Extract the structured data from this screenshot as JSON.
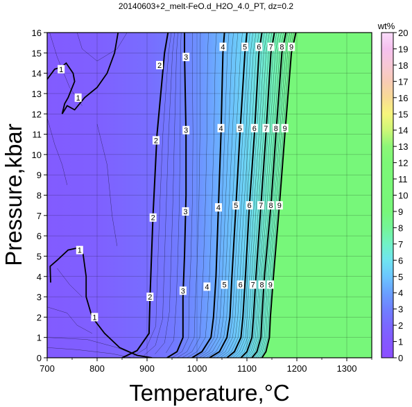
{
  "chart_data": {
    "type": "heatmap",
    "title": "20140603+2_melt-FeO.d_H2O_4.0_PT, dz=0.2",
    "xlabel": "Temperature,°C",
    "ylabel": "Pressure,kbar",
    "xlim": [
      700,
      1350
    ],
    "ylim": [
      0,
      16
    ],
    "x_ticks": [
      700,
      800,
      900,
      1000,
      1100,
      1200,
      1300
    ],
    "y_ticks": [
      0,
      1,
      2,
      3,
      4,
      5,
      6,
      7,
      8,
      9,
      10,
      11,
      12,
      13,
      14,
      15,
      16
    ],
    "grid": true,
    "colorbar": {
      "label": "wt%",
      "range": [
        0,
        20
      ],
      "ticks": [
        0,
        1,
        2,
        3,
        4,
        5,
        6,
        7,
        8,
        9,
        10,
        11,
        12,
        13,
        14,
        15,
        16,
        17,
        18,
        19,
        20
      ],
      "stops": [
        {
          "value": 0,
          "color": "#8c4fff"
        },
        {
          "value": 1,
          "color": "#8458ff"
        },
        {
          "value": 2,
          "color": "#7a68ff"
        },
        {
          "value": 3,
          "color": "#6f80ff"
        },
        {
          "value": 4,
          "color": "#6aa0ff"
        },
        {
          "value": 5,
          "color": "#6cc6ff"
        },
        {
          "value": 6,
          "color": "#6fe4f0"
        },
        {
          "value": 7,
          "color": "#71f2c6"
        },
        {
          "value": 8,
          "color": "#74f597"
        },
        {
          "value": 9,
          "color": "#77f77a"
        },
        {
          "value": 12,
          "color": "#7cf877"
        },
        {
          "value": 13,
          "color": "#8cf777"
        },
        {
          "value": 14,
          "color": "#cdf777"
        },
        {
          "value": 15,
          "color": "#f7f57c"
        },
        {
          "value": 16,
          "color": "#f8da95"
        },
        {
          "value": 17,
          "color": "#f8cbb5"
        },
        {
          "value": 18,
          "color": "#f7c8d6"
        },
        {
          "value": 19,
          "color": "#f5c0ee"
        },
        {
          "value": 20,
          "color": "#fadcfa"
        }
      ]
    },
    "contours": [
      {
        "level": "3",
        "points": [
          [
            975,
            16
          ],
          [
            975,
            15
          ],
          [
            978,
            11
          ],
          [
            978,
            8
          ],
          [
            975,
            5
          ],
          [
            972,
            3
          ],
          [
            972,
            1
          ],
          [
            960,
            0.3
          ],
          [
            940,
            0
          ]
        ]
      },
      {
        "level": "4",
        "points": [
          [
            1055,
            16
          ],
          [
            1052,
            15
          ],
          [
            1048,
            11
          ],
          [
            1043,
            7.5
          ],
          [
            1038,
            4
          ],
          [
            1033,
            2
          ],
          [
            1028,
            1
          ],
          [
            1010,
            0.3
          ],
          [
            990,
            0
          ]
        ]
      },
      {
        "level": "5",
        "points": [
          [
            1100,
            16
          ],
          [
            1096,
            15
          ],
          [
            1086,
            11
          ],
          [
            1078,
            7.5
          ],
          [
            1070,
            4
          ],
          [
            1066,
            2
          ],
          [
            1060,
            1
          ],
          [
            1045,
            0.3
          ],
          [
            1025,
            0
          ]
        ]
      },
      {
        "level": "6",
        "points": [
          [
            1130,
            16
          ],
          [
            1124,
            15
          ],
          [
            1115,
            11
          ],
          [
            1105,
            7.5
          ],
          [
            1097,
            4
          ],
          [
            1092,
            2
          ],
          [
            1088,
            1
          ],
          [
            1075,
            0.3
          ],
          [
            1060,
            0
          ]
        ]
      },
      {
        "level": "7",
        "points": [
          [
            1155,
            16
          ],
          [
            1148,
            15
          ],
          [
            1138,
            11
          ],
          [
            1128,
            7.5
          ],
          [
            1118,
            4
          ],
          [
            1113,
            2
          ],
          [
            1110,
            1
          ],
          [
            1100,
            0.3
          ],
          [
            1088,
            0
          ]
        ]
      },
      {
        "level": "8",
        "points": [
          [
            1178,
            16
          ],
          [
            1170,
            15
          ],
          [
            1158,
            11
          ],
          [
            1148,
            7.5
          ],
          [
            1135,
            4
          ],
          [
            1130,
            2
          ],
          [
            1128,
            1
          ],
          [
            1120,
            0.3
          ],
          [
            1110,
            0
          ]
        ]
      },
      {
        "level": "9",
        "points": [
          [
            1198,
            16
          ],
          [
            1189,
            15
          ],
          [
            1176,
            11
          ],
          [
            1165,
            7.5
          ],
          [
            1153,
            4
          ],
          [
            1147,
            2
          ],
          [
            1145,
            1
          ],
          [
            1138,
            0.3
          ],
          [
            1130,
            0
          ]
        ]
      }
    ],
    "contour_labels": [
      {
        "text": "1",
        "x": 728,
        "y": 14.2
      },
      {
        "text": "1",
        "x": 762,
        "y": 12.8
      },
      {
        "text": "2",
        "x": 925,
        "y": 14.4
      },
      {
        "text": "2",
        "x": 918,
        "y": 10.7
      },
      {
        "text": "2",
        "x": 912,
        "y": 6.9
      },
      {
        "text": "2",
        "x": 906,
        "y": 3.0
      },
      {
        "text": "1",
        "x": 765,
        "y": 5.3
      },
      {
        "text": "1",
        "x": 795,
        "y": 2.0
      },
      {
        "text": "3",
        "x": 978,
        "y": 14.8
      },
      {
        "text": "3",
        "x": 978,
        "y": 11.2
      },
      {
        "text": "3",
        "x": 977,
        "y": 7.2
      },
      {
        "text": "3",
        "x": 972,
        "y": 3.3
      },
      {
        "text": "4",
        "x": 1052,
        "y": 15.3
      },
      {
        "text": "4",
        "x": 1048,
        "y": 11.3
      },
      {
        "text": "4",
        "x": 1043,
        "y": 7.4
      },
      {
        "text": "4",
        "x": 1020,
        "y": 3.5
      },
      {
        "text": "5",
        "x": 1096,
        "y": 15.3
      },
      {
        "text": "5",
        "x": 1086,
        "y": 11.3
      },
      {
        "text": "5",
        "x": 1078,
        "y": 7.5
      },
      {
        "text": "5",
        "x": 1055,
        "y": 3.6
      },
      {
        "text": "6",
        "x": 1124,
        "y": 15.3
      },
      {
        "text": "6",
        "x": 1115,
        "y": 11.3
      },
      {
        "text": "6",
        "x": 1105,
        "y": 7.5
      },
      {
        "text": "6",
        "x": 1087,
        "y": 3.6
      },
      {
        "text": "7",
        "x": 1148,
        "y": 15.3
      },
      {
        "text": "7",
        "x": 1138,
        "y": 11.3
      },
      {
        "text": "7",
        "x": 1128,
        "y": 7.5
      },
      {
        "text": "7",
        "x": 1112,
        "y": 3.6
      },
      {
        "text": "8",
        "x": 1170,
        "y": 15.3
      },
      {
        "text": "8",
        "x": 1158,
        "y": 11.3
      },
      {
        "text": "8",
        "x": 1148,
        "y": 7.5
      },
      {
        "text": "8",
        "x": 1130,
        "y": 3.6
      },
      {
        "text": "9",
        "x": 1189,
        "y": 15.3
      },
      {
        "text": "9",
        "x": 1176,
        "y": 11.3
      },
      {
        "text": "9",
        "x": 1165,
        "y": 7.5
      },
      {
        "text": "9",
        "x": 1147,
        "y": 3.6
      }
    ]
  }
}
